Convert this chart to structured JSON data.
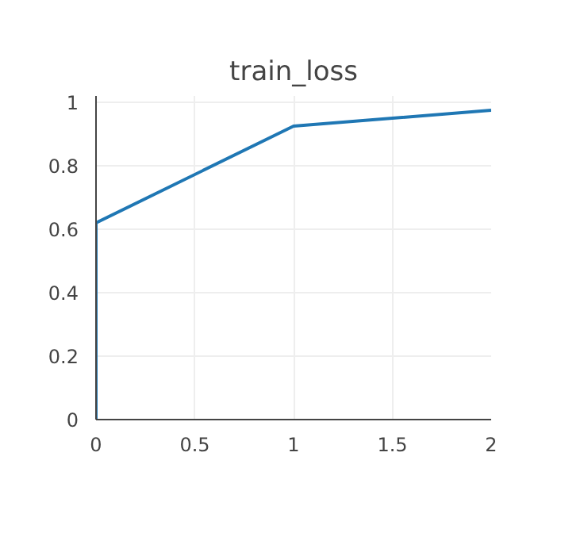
{
  "chart_data": {
    "type": "line",
    "title": "train_loss",
    "x": [
      0,
      0,
      1,
      2
    ],
    "series": [
      {
        "color": "#1f77b4",
        "values": [
          0,
          0.62,
          0.925,
          0.975
        ]
      }
    ],
    "xlim": [
      0,
      2
    ],
    "ylim": [
      0,
      1.02
    ],
    "xticks": [
      0,
      0.5,
      1,
      1.5,
      2
    ],
    "yticks": [
      0,
      0.2,
      0.4,
      0.6,
      0.8,
      1
    ],
    "grid": true,
    "marker": "none",
    "line_style": "solid"
  }
}
